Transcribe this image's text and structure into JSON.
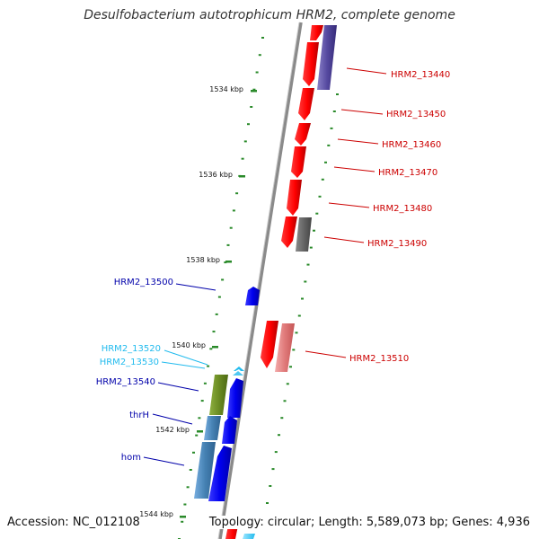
{
  "title": "Desulfobacterium autotrophicum HRM2, complete genome",
  "footer": {
    "accession": "Accession: NC_012108",
    "topology": "Topology: circular; Length: 5,589,073 bp; Genes: 4,936"
  },
  "colors": {
    "backbone": "#8a8a8a",
    "tick": "#2a8a2a",
    "red_label": "#cc0000",
    "blue_label": "#0000aa",
    "cyan_label": "#22bbee"
  },
  "scale_labels": [
    "1534 kbp",
    "1536 kbp",
    "1538 kbp",
    "1540 kbp",
    "1542 kbp",
    "1544 kbp"
  ],
  "gene_labels": {
    "right": [
      "HRM2_13440",
      "HRM2_13450",
      "HRM2_13460",
      "HRM2_13470",
      "HRM2_13480",
      "HRM2_13490",
      "HRM2_13510"
    ],
    "left": [
      "HRM2_13500",
      "HRM2_13520",
      "HRM2_13530",
      "HRM2_13540",
      "thrH",
      "hom"
    ]
  }
}
